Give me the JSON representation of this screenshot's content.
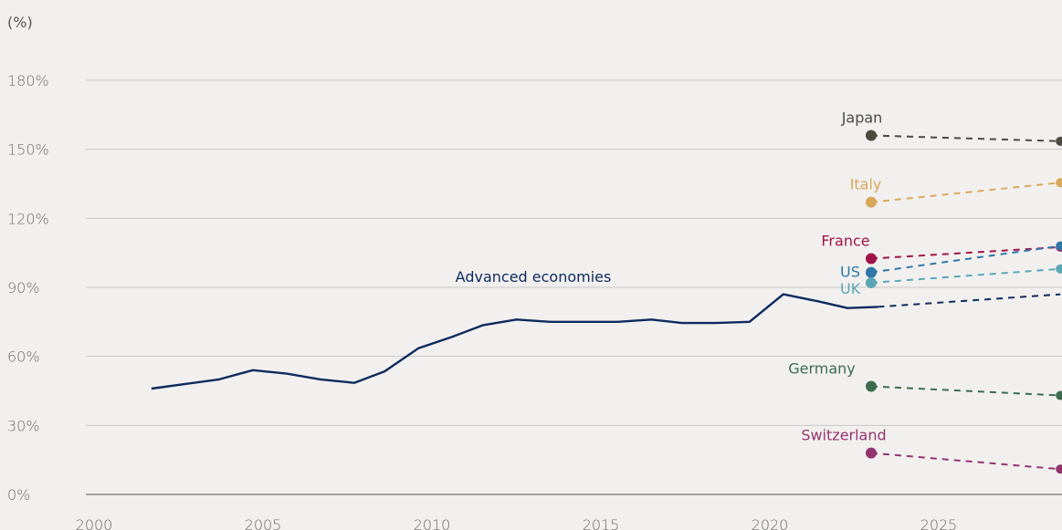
{
  "chart_data": {
    "type": "line",
    "title": "",
    "y_unit_label": "(%)",
    "xlim": [
      2000,
      2028.6
    ],
    "ylim": [
      0,
      180
    ],
    "x_ticks": [
      "2000",
      "2005",
      "2010",
      "2015",
      "2020",
      "2025"
    ],
    "y_ticks": [
      "0%",
      "30%",
      "60%",
      "90%",
      "120%",
      "150%",
      "180%"
    ],
    "grid": true,
    "series": [
      {
        "name": "Advanced economies",
        "color": "#0d2a5e",
        "style": "solid",
        "points": [
          [
            2001.7,
            46
          ],
          [
            2002.7,
            48
          ],
          [
            2003.7,
            50
          ],
          [
            2004.7,
            54
          ],
          [
            2005.7,
            52.5
          ],
          [
            2006.7,
            50
          ],
          [
            2007.7,
            48.5
          ],
          [
            2008.6,
            53.5
          ],
          [
            2009.6,
            63.5
          ],
          [
            2010.6,
            68.5
          ],
          [
            2011.5,
            73.5
          ],
          [
            2012.5,
            76
          ],
          [
            2013.5,
            75
          ],
          [
            2014.5,
            75
          ],
          [
            2015.5,
            75
          ],
          [
            2016.5,
            76
          ],
          [
            2017.4,
            74.5
          ],
          [
            2018.4,
            74.5
          ],
          [
            2019.4,
            75
          ],
          [
            2020.4,
            87
          ],
          [
            2021.4,
            84
          ],
          [
            2022.3,
            81
          ],
          [
            2023.2,
            81.5
          ]
        ]
      },
      {
        "name": "Advanced economies projection",
        "color": "#0d2a5e",
        "style": "dashed",
        "points": [
          [
            2023.2,
            81.5
          ],
          [
            2028.6,
            87
          ]
        ]
      },
      {
        "name": "Japan",
        "color": "#4a4a40",
        "style": "dashed",
        "label_dx": -10,
        "points": [
          [
            2023,
            156
          ],
          [
            2028.6,
            153.5
          ]
        ]
      },
      {
        "name": "Italy",
        "color": "#d9a85b",
        "style": "dashed",
        "label_dx": -6,
        "points": [
          [
            2023,
            127
          ],
          [
            2028.6,
            135.5
          ]
        ]
      },
      {
        "name": "France",
        "color": "#a0144a",
        "style": "dashed",
        "label_dx": -28,
        "points": [
          [
            2023,
            102.5
          ],
          [
            2028.6,
            107.5
          ]
        ]
      },
      {
        "name": "US",
        "color": "#2e76a6",
        "style": "dashed",
        "label_dx": -34,
        "points": [
          [
            2023,
            96.5
          ],
          [
            2028.6,
            108
          ]
        ]
      },
      {
        "name": "UK",
        "color": "#5ba6b6",
        "style": "dashed",
        "label_dx": -34,
        "points": [
          [
            2023,
            92
          ],
          [
            2028.6,
            98
          ]
        ]
      },
      {
        "name": "Germany",
        "color": "#3c6b50",
        "style": "dashed",
        "label_dx": -54,
        "points": [
          [
            2023,
            47
          ],
          [
            2028.6,
            43
          ]
        ]
      },
      {
        "name": "Switzerland",
        "color": "#93346f",
        "style": "dashed",
        "label_dx": -30,
        "points": [
          [
            2023,
            18
          ],
          [
            2028.6,
            11
          ]
        ]
      }
    ]
  }
}
